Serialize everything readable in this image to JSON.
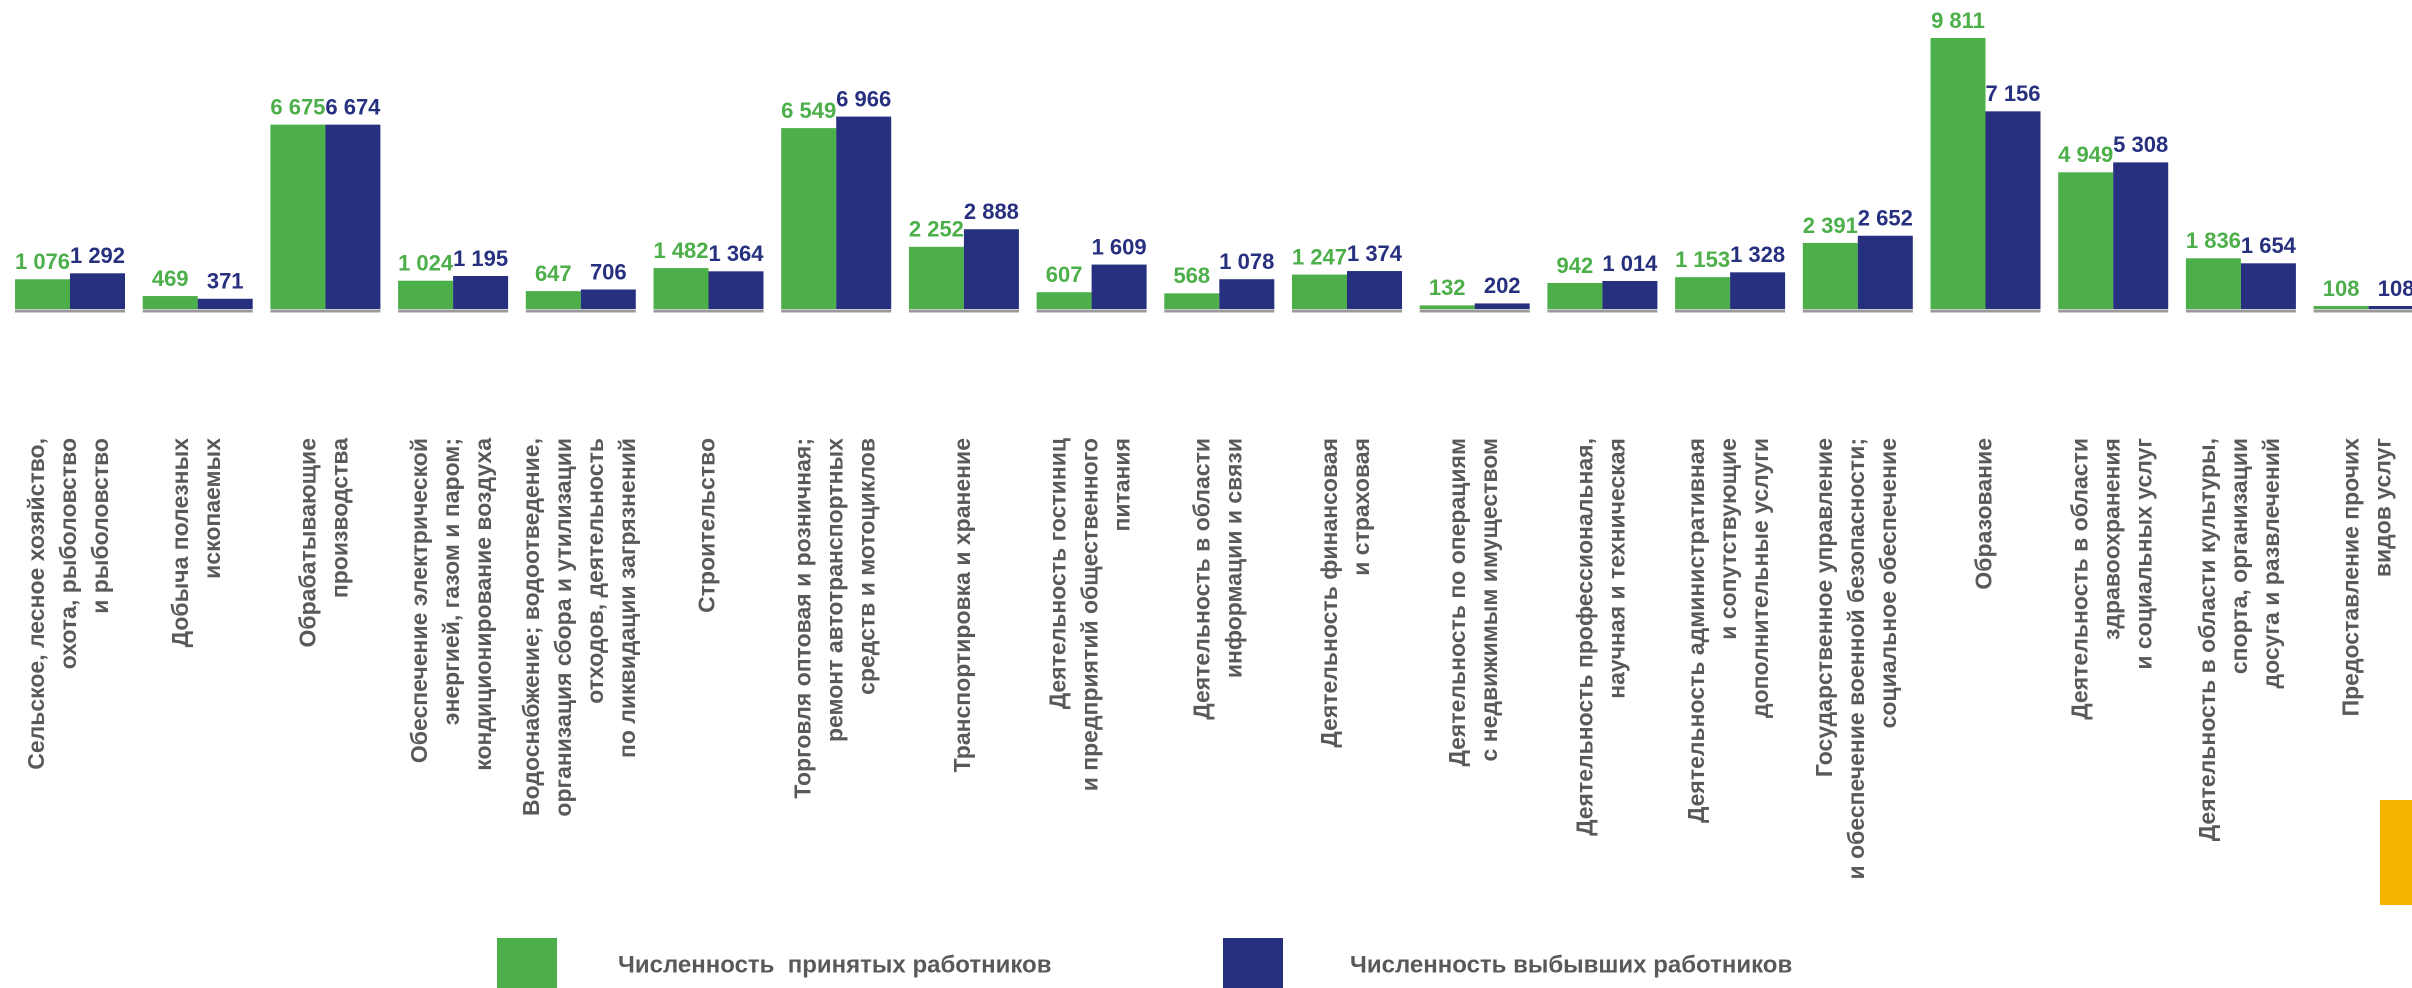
{
  "chart_data": {
    "type": "bar",
    "categories": [
      [
        "Сельское, лесное хозяйство,",
        "охота, рыболовство",
        "и рыболовство"
      ],
      [
        "Добыча полезных",
        "ископаемых"
      ],
      [
        "Обрабатывающие",
        "производства"
      ],
      [
        "Обеспечение электрической",
        "энергией, газом и паром;",
        "кондиционирование воздуха"
      ],
      [
        "Водоснабжение; водоотведение,",
        "организация сбора и утилизации",
        "отходов, деятельность",
        "по ликвидации загрязнений"
      ],
      [
        "Строительство"
      ],
      [
        "Торговля оптовая и розничная;",
        "ремонт автотранспортных",
        "средств и мотоциклов"
      ],
      [
        "Транспортировка и хранение"
      ],
      [
        "Деятельность гостиниц",
        "и предприятий общественного",
        "питания"
      ],
      [
        "Деятельность в области",
        "информации и связи"
      ],
      [
        "Деятельность финансовая",
        "и страховая"
      ],
      [
        "Деятельность по операциям",
        "с недвижимым имуществом"
      ],
      [
        "Деятельность профессиональная,",
        "научная и техническая"
      ],
      [
        "Деятельность административная",
        "и сопутствующие",
        "дополнительные услуги"
      ],
      [
        "Государственное управление",
        "и обеспечение военной безопасности;",
        "социальное обеспечение"
      ],
      [
        "Образование"
      ],
      [
        "Деятельность в области",
        "здравоохранения",
        "и социальных услуг"
      ],
      [
        "Деятельность в области культуры,",
        "спорта, организации",
        "досуга и развлечений"
      ],
      [
        "Предоставление прочих",
        "видов услуг"
      ]
    ],
    "series": [
      {
        "name": "Численность  принятых работников",
        "color": "#4daf4a",
        "values": [
          1076,
          469,
          6675,
          1024,
          647,
          1482,
          6549,
          2252,
          607,
          568,
          1247,
          132,
          942,
          1153,
          2391,
          9811,
          4949,
          1836,
          108
        ],
        "value_labels": [
          "1 076",
          "469",
          "6 675",
          "1 024",
          "647",
          "1 482",
          "6 549",
          "2 252",
          "607",
          "568",
          "1 247",
          "132",
          "942",
          "1 153",
          "2 391",
          "9 811",
          "4 949",
          "1 836",
          "108"
        ]
      },
      {
        "name": "Численность выбывших работников",
        "color": "#27307f",
        "values": [
          1292,
          371,
          6674,
          1195,
          706,
          1364,
          6966,
          2888,
          1609,
          1078,
          1374,
          202,
          1014,
          1328,
          2652,
          7156,
          5308,
          1654,
          108
        ],
        "value_labels": [
          "1 292",
          "371",
          "6 674",
          "1 195",
          "706",
          "1 364",
          "6 966",
          "2 888",
          "1 609",
          "1 078",
          "1 374",
          "202",
          "1 014",
          "1 328",
          "2 652",
          "7 156",
          "5 308",
          "1 654",
          "108"
        ]
      }
    ]
  }
}
